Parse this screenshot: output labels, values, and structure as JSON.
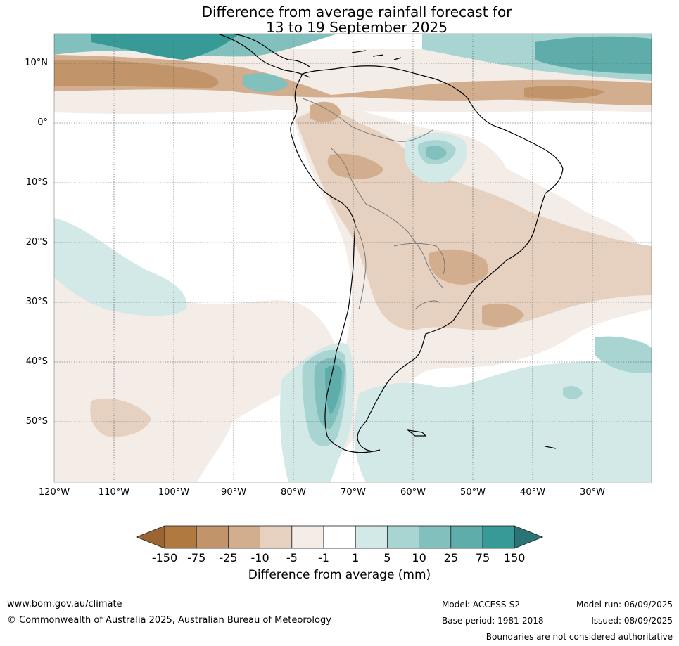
{
  "title_line1": "Difference from average rainfall forecast for",
  "title_line2": "13 to 19 September 2025",
  "lat_labels": [
    "10°N",
    "0°",
    "10°S",
    "20°S",
    "30°S",
    "40°S",
    "50°S"
  ],
  "lon_labels": [
    "120°W",
    "110°W",
    "100°W",
    "90°W",
    "80°W",
    "70°W",
    "60°W",
    "50°W",
    "40°W",
    "30°W"
  ],
  "colorbar": {
    "ticks": [
      "-150",
      "-75",
      "-25",
      "-10",
      "-5",
      "-1",
      "1",
      "5",
      "10",
      "25",
      "75",
      "150"
    ],
    "colors": [
      "#9b6430",
      "#b07940",
      "#c1946a",
      "#d2ae8e",
      "#e6d1c0",
      "#f4ece6",
      "#ffffff",
      "#d3e9e7",
      "#a8d4d2",
      "#82c0bd",
      "#5eadaa",
      "#379a96",
      "#2b7475"
    ],
    "title": "Difference from average (mm)"
  },
  "footer": {
    "url": "www.bom.gov.au/climate",
    "copyright": "© Commonwealth of Australia 2025, Australian Bureau of Meteorology",
    "model": "Model: ACCESS-S2",
    "base_period": "Base period: 1981-2018",
    "model_run": "Model run: 06/09/2025",
    "issued": "Issued: 08/09/2025",
    "disclaimer": "Boundaries are not considered authoritative"
  }
}
